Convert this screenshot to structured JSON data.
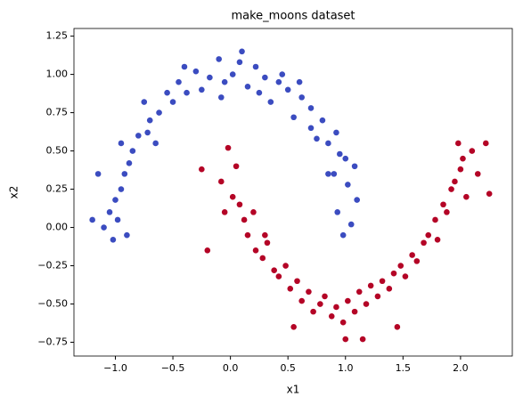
{
  "chart_data": {
    "type": "scatter",
    "title": "make_moons dataset",
    "x_label": "x1",
    "y_label": "x2",
    "xlim": [
      -1.36,
      2.45
    ],
    "ylim": [
      -0.84,
      1.3
    ],
    "xticks": [
      {
        "value": -1.0,
        "label": "−1.0"
      },
      {
        "value": -0.5,
        "label": "−0.5"
      },
      {
        "value": 0.0,
        "label": "0.0"
      },
      {
        "value": 0.5,
        "label": "0.5"
      },
      {
        "value": 1.0,
        "label": "1.0"
      },
      {
        "value": 1.5,
        "label": "1.5"
      },
      {
        "value": 2.0,
        "label": "2.0"
      }
    ],
    "yticks": [
      {
        "value": -0.75,
        "label": "−0.75"
      },
      {
        "value": -0.5,
        "label": "−0.50"
      },
      {
        "value": -0.25,
        "label": "−0.25"
      },
      {
        "value": 0.0,
        "label": "0.00"
      },
      {
        "value": 0.25,
        "label": "0.25"
      },
      {
        "value": 0.5,
        "label": "0.50"
      },
      {
        "value": 0.75,
        "label": "0.75"
      },
      {
        "value": 1.0,
        "label": "1.00"
      },
      {
        "value": 1.25,
        "label": "1.25"
      }
    ],
    "grid": false,
    "series": [
      {
        "color": "#3b4cc0",
        "x": [
          1.05,
          0.93,
          1.1,
          0.98,
          1.02,
          0.9,
          1.08,
          0.95,
          0.85,
          0.92,
          0.8,
          0.75,
          0.7,
          0.62,
          0.55,
          0.5,
          0.42,
          0.35,
          0.3,
          0.22,
          0.15,
          0.08,
          0.02,
          -0.05,
          -0.1,
          -0.18,
          -0.25,
          -0.3,
          -0.38,
          -0.45,
          -0.5,
          -0.55,
          -0.62,
          -0.7,
          -0.72,
          -0.8,
          -0.85,
          -0.88,
          -0.92,
          -0.95,
          -1.0,
          -1.05,
          -0.98,
          -1.1,
          -1.02,
          -0.9,
          -1.15,
          -0.95,
          -0.75,
          -0.4,
          0.1,
          0.45,
          0.7,
          1.0,
          -0.08,
          0.25,
          0.85,
          -1.2,
          -0.65,
          0.6
        ],
        "values": [
          0.02,
          0.1,
          0.18,
          -0.05,
          0.28,
          0.35,
          0.4,
          0.48,
          0.55,
          0.62,
          0.7,
          0.58,
          0.78,
          0.85,
          0.72,
          0.9,
          0.95,
          0.82,
          0.98,
          1.05,
          0.92,
          1.08,
          1.0,
          0.95,
          1.1,
          0.98,
          0.9,
          1.02,
          0.88,
          0.95,
          0.82,
          0.88,
          0.75,
          0.7,
          0.62,
          0.6,
          0.5,
          0.42,
          0.35,
          0.25,
          0.18,
          0.1,
          0.05,
          0.0,
          -0.08,
          -0.05,
          0.35,
          0.55,
          0.82,
          1.05,
          1.15,
          1.0,
          0.65,
          0.45,
          0.85,
          0.88,
          0.35,
          0.05,
          0.55,
          0.95
        ]
      },
      {
        "color": "#b40426",
        "x": [
          -0.02,
          0.05,
          -0.08,
          0.02,
          0.08,
          -0.05,
          0.12,
          0.15,
          0.2,
          0.22,
          0.28,
          0.32,
          0.38,
          0.42,
          0.48,
          0.52,
          0.58,
          0.62,
          0.68,
          0.72,
          0.78,
          0.82,
          0.88,
          0.92,
          0.98,
          1.02,
          1.08,
          1.12,
          1.18,
          1.22,
          1.28,
          1.32,
          1.38,
          1.42,
          1.48,
          1.52,
          1.58,
          1.62,
          1.68,
          1.72,
          1.78,
          1.8,
          1.85,
          1.88,
          1.92,
          1.95,
          2.0,
          2.02,
          1.98,
          2.05,
          2.1,
          2.15,
          2.22,
          2.25,
          -0.25,
          -0.2,
          0.55,
          1.0,
          1.15,
          0.3,
          1.45
        ],
        "values": [
          0.52,
          0.4,
          0.3,
          0.2,
          0.15,
          0.1,
          0.05,
          -0.05,
          0.1,
          -0.15,
          -0.2,
          -0.1,
          -0.28,
          -0.32,
          -0.25,
          -0.4,
          -0.35,
          -0.48,
          -0.42,
          -0.55,
          -0.5,
          -0.45,
          -0.58,
          -0.52,
          -0.62,
          -0.48,
          -0.55,
          -0.42,
          -0.5,
          -0.38,
          -0.45,
          -0.35,
          -0.4,
          -0.3,
          -0.25,
          -0.32,
          -0.18,
          -0.22,
          -0.1,
          -0.05,
          0.05,
          -0.08,
          0.15,
          0.1,
          0.25,
          0.3,
          0.38,
          0.45,
          0.55,
          0.2,
          0.5,
          0.35,
          0.55,
          0.22,
          0.38,
          -0.15,
          -0.65,
          -0.73,
          -0.73,
          -0.05,
          -0.65
        ]
      }
    ]
  }
}
